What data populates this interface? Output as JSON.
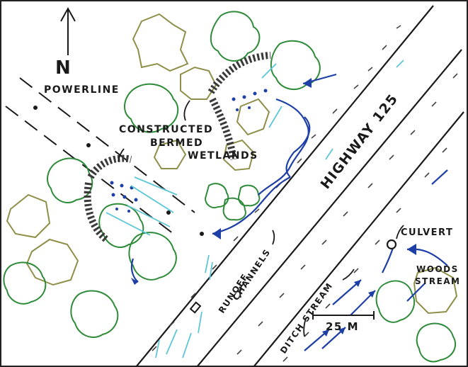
{
  "labels": {
    "north": "N",
    "powerline": "POWERLINE",
    "wetlands_line1": "CONSTRUCTED",
    "wetlands_line2": "BERMED",
    "wetlands_line3": "WETLANDS",
    "highway": "HIGHWAY 125",
    "runoff_line1": "RUNOFF",
    "runoff_line2": "CHANNELS",
    "culvert": "CULVERT",
    "woods_line1": "WOODS",
    "woods_line2": "STREAM",
    "ditch": "DITCH STREAM",
    "scale": "25 M"
  },
  "colors": {
    "ink": "#1a1a1a",
    "water": "#1d3fa6",
    "runoff": "#5cc6d6",
    "tree_green": "#2e8b3a",
    "tree_olive": "#8f8f4a",
    "berm": "#3a3a3a"
  }
}
